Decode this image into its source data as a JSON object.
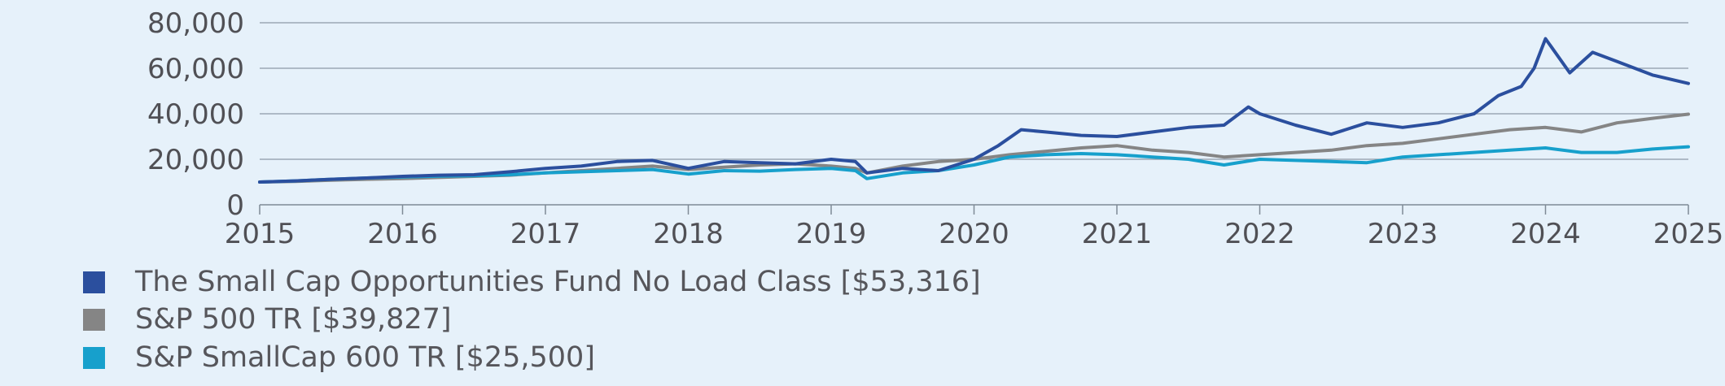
{
  "chart_data": {
    "type": "line",
    "ylim": [
      0,
      80000
    ],
    "xlim": [
      2015,
      2025
    ],
    "yticks": [
      "0",
      "20,000",
      "40,000",
      "60,000",
      "80,000"
    ],
    "xticks": [
      "2015",
      "2016",
      "2017",
      "2018",
      "2019",
      "2020",
      "2021",
      "2022",
      "2023",
      "2024",
      "2025"
    ],
    "grid": true,
    "legend_position": "bottom",
    "series": [
      {
        "name": "The Small Cap Opportunities Fund No Load Class [$53,316]",
        "color": "#2b4f9e",
        "x": [
          2015.0,
          2015.25,
          2015.5,
          2015.75,
          2016.0,
          2016.25,
          2016.5,
          2016.75,
          2017.0,
          2017.25,
          2017.5,
          2017.75,
          2018.0,
          2018.25,
          2018.5,
          2018.75,
          2019.0,
          2019.17,
          2019.25,
          2019.5,
          2019.75,
          2020.0,
          2020.17,
          2020.33,
          2020.5,
          2020.75,
          2021.0,
          2021.25,
          2021.5,
          2021.75,
          2021.92,
          2022.0,
          2022.25,
          2022.5,
          2022.75,
          2023.0,
          2023.25,
          2023.5,
          2023.67,
          2023.83,
          2023.92,
          2024.0,
          2024.17,
          2024.33,
          2024.5,
          2024.75,
          2025.0
        ],
        "y": [
          10000,
          10500,
          11200,
          11800,
          12500,
          13000,
          13200,
          14500,
          16000,
          17000,
          19000,
          19500,
          16000,
          19000,
          18500,
          18000,
          20000,
          19000,
          14000,
          16000,
          15000,
          20000,
          26000,
          33000,
          32000,
          30500,
          30000,
          32000,
          34000,
          35000,
          43000,
          40000,
          35000,
          31000,
          36000,
          34000,
          36000,
          40000,
          48000,
          52000,
          60000,
          73000,
          58000,
          67000,
          63000,
          57000,
          53316
        ]
      },
      {
        "name": "S&P 500 TR [$39,827]",
        "color": "#858585",
        "x": [
          2015.0,
          2015.25,
          2015.5,
          2015.75,
          2016.0,
          2016.25,
          2016.5,
          2016.75,
          2017.0,
          2017.25,
          2017.5,
          2017.75,
          2018.0,
          2018.25,
          2018.5,
          2018.75,
          2019.0,
          2019.17,
          2019.25,
          2019.5,
          2019.75,
          2020.0,
          2020.25,
          2020.5,
          2020.75,
          2021.0,
          2021.25,
          2021.5,
          2021.75,
          2022.0,
          2022.25,
          2022.5,
          2022.75,
          2023.0,
          2023.25,
          2023.5,
          2023.75,
          2024.0,
          2024.25,
          2024.5,
          2024.75,
          2025.0
        ],
        "y": [
          10000,
          10300,
          10800,
          11200,
          11500,
          12000,
          12500,
          13000,
          14000,
          15000,
          16000,
          17000,
          15500,
          16500,
          17500,
          18000,
          17000,
          16000,
          14000,
          17000,
          19000,
          20000,
          22000,
          23500,
          25000,
          26000,
          24000,
          23000,
          21000,
          22000,
          23000,
          24000,
          26000,
          27000,
          29000,
          31000,
          33000,
          34000,
          32000,
          36000,
          38000,
          39827
        ]
      },
      {
        "name": "S&P SmallCap 600 TR [$25,500]",
        "color": "#17a0cc",
        "x": [
          2015.0,
          2015.25,
          2015.5,
          2015.75,
          2016.0,
          2016.25,
          2016.5,
          2016.75,
          2017.0,
          2017.25,
          2017.5,
          2017.75,
          2018.0,
          2018.25,
          2018.5,
          2018.75,
          2019.0,
          2019.17,
          2019.25,
          2019.5,
          2019.75,
          2020.0,
          2020.25,
          2020.5,
          2020.75,
          2021.0,
          2021.25,
          2021.5,
          2021.75,
          2022.0,
          2022.25,
          2022.5,
          2022.75,
          2023.0,
          2023.25,
          2023.5,
          2023.75,
          2024.0,
          2024.25,
          2024.5,
          2024.75,
          2025.0
        ],
        "y": [
          10000,
          10500,
          11200,
          11800,
          12200,
          12600,
          12800,
          13200,
          14000,
          14500,
          15000,
          15500,
          13500,
          15000,
          14800,
          15500,
          16000,
          15000,
          11500,
          14000,
          15000,
          17500,
          21000,
          22000,
          22500,
          22000,
          21000,
          20000,
          17500,
          20000,
          19500,
          19000,
          18500,
          21000,
          22000,
          23000,
          24000,
          25000,
          23000,
          23000,
          24500,
          25500
        ]
      }
    ]
  }
}
